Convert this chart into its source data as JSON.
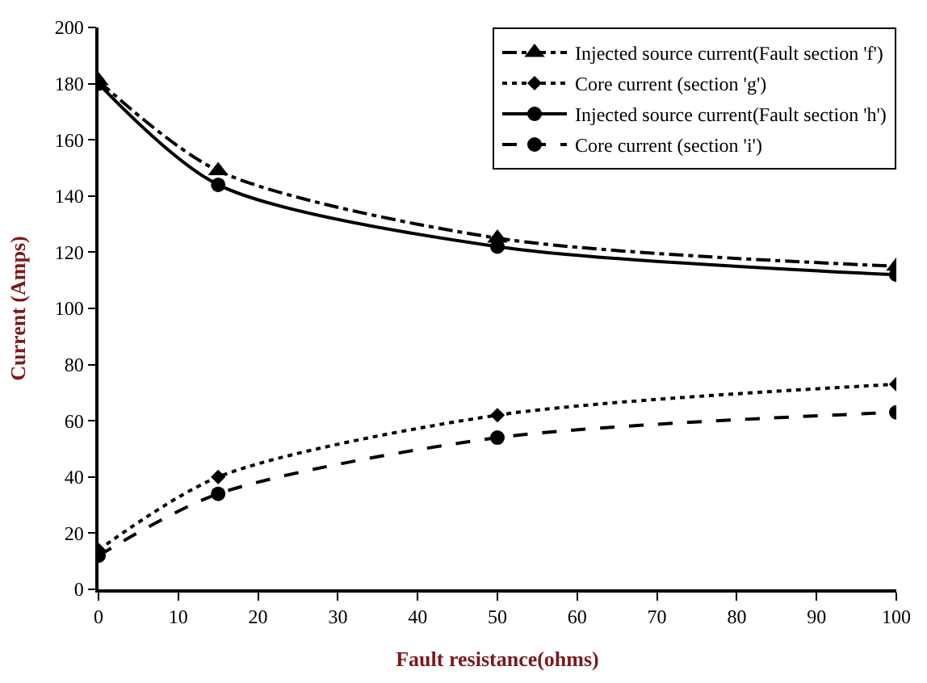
{
  "chart_data": {
    "type": "line",
    "xlabel": "Fault resistance(ohms)",
    "ylabel": "Current (Amps)",
    "x": [
      0,
      15,
      50,
      100
    ],
    "series": [
      {
        "name": "Injected source current(Fault section 'f')",
        "color": "#000000",
        "values": [
          181,
          149,
          125,
          115
        ],
        "marker": "triangle",
        "line_style": "dashdot"
      },
      {
        "name": "Core current (section 'g')",
        "color": "#000000",
        "values": [
          14,
          40,
          62,
          73
        ],
        "marker": "diamond",
        "line_style": "dotted"
      },
      {
        "name": "Injected source current(Fault section 'h')",
        "color": "#000000",
        "values": [
          180,
          144,
          122,
          112
        ],
        "marker": "circle",
        "line_style": "solid"
      },
      {
        "name": "Core current (section 'i')",
        "color": "#000000",
        "values": [
          12,
          34,
          54,
          63
        ],
        "marker": "circle",
        "line_style": "dashed"
      }
    ],
    "xlim": [
      0,
      100
    ],
    "xticks": [
      0,
      10,
      20,
      30,
      40,
      50,
      60,
      70,
      80,
      90,
      100
    ],
    "ylim": [
      0,
      200
    ],
    "yticks": [
      0,
      20,
      40,
      60,
      80,
      100,
      120,
      140,
      160,
      180,
      200
    ],
    "grid": false,
    "legend": "top right"
  }
}
